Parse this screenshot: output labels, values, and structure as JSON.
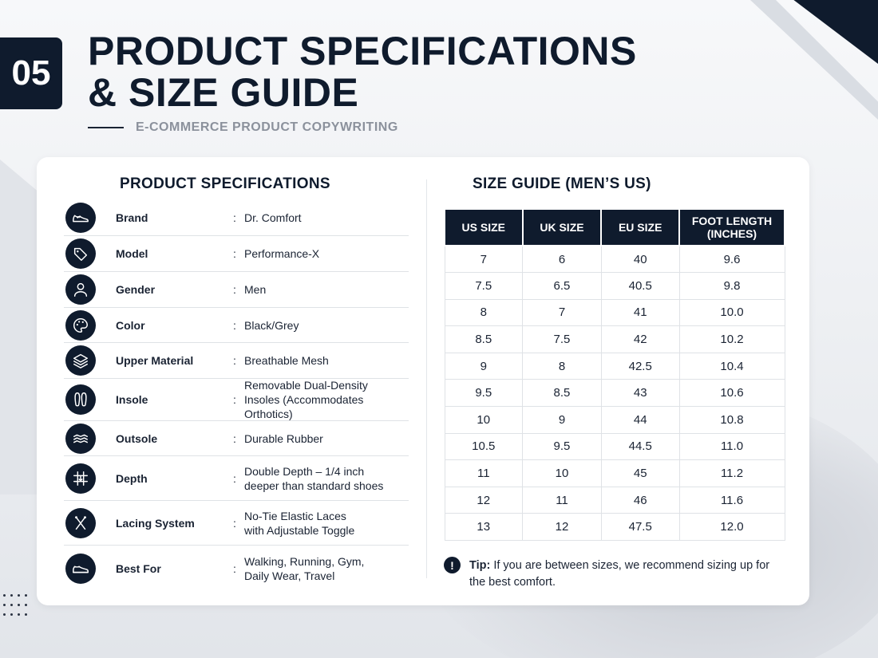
{
  "header": {
    "number": "05",
    "title_line1": "PRODUCT SPECIFICATIONS",
    "title_line2": "& SIZE GUIDE",
    "subtitle": "E-COMMERCE PRODUCT COPYWRITING"
  },
  "specs": {
    "heading": "PRODUCT SPECIFICATIONS",
    "colon": ":",
    "items": [
      {
        "label": "Brand",
        "value": "Dr. Comfort",
        "icon": "shoe-icon"
      },
      {
        "label": "Model",
        "value": "Performance-X",
        "icon": "tag-icon"
      },
      {
        "label": "Gender",
        "value": "Men",
        "icon": "user-icon"
      },
      {
        "label": "Color",
        "value": "Black/Grey",
        "icon": "palette-icon"
      },
      {
        "label": "Upper Material",
        "value": "Breathable Mesh",
        "icon": "layers-icon"
      },
      {
        "label": "Insole",
        "value": "Removable Dual-Density\nInsoles (Accommodates Orthotics)",
        "icon": "insole-icon"
      },
      {
        "label": "Outsole",
        "value": "Durable Rubber",
        "icon": "outsole-icon"
      },
      {
        "label": "Depth",
        "value": "Double Depth – 1/4 inch\ndeeper than standard shoes",
        "icon": "depth-icon"
      },
      {
        "label": "Lacing System",
        "value": "No-Tie Elastic Laces\nwith Adjustable Toggle",
        "icon": "lacing-icon"
      },
      {
        "label": "Best For",
        "value": "Walking, Running, Gym,\nDaily Wear, Travel",
        "icon": "sneaker-icon"
      }
    ]
  },
  "size_guide": {
    "heading": "SIZE GUIDE (MEN’S US)",
    "columns": [
      "US SIZE",
      "UK SIZE",
      "EU SIZE",
      "FOOT LENGTH\n(INCHES)"
    ],
    "rows": [
      [
        "7",
        "6",
        "40",
        "9.6"
      ],
      [
        "7.5",
        "6.5",
        "40.5",
        "9.8"
      ],
      [
        "8",
        "7",
        "41",
        "10.0"
      ],
      [
        "8.5",
        "7.5",
        "42",
        "10.2"
      ],
      [
        "9",
        "8",
        "42.5",
        "10.4"
      ],
      [
        "9.5",
        "8.5",
        "43",
        "10.6"
      ],
      [
        "10",
        "9",
        "44",
        "10.8"
      ],
      [
        "10.5",
        "9.5",
        "44.5",
        "11.0"
      ],
      [
        "11",
        "10",
        "45",
        "11.2"
      ],
      [
        "12",
        "11",
        "46",
        "11.6"
      ],
      [
        "13",
        "12",
        "47.5",
        "12.0"
      ]
    ],
    "tip_icon": "!",
    "tip_label": "Tip:",
    "tip_text": " If you are between sizes, we recommend sizing up for the best comfort."
  },
  "colors": {
    "navy": "#0f1b2d",
    "text": "#1a2333",
    "muted": "#8b919c"
  }
}
